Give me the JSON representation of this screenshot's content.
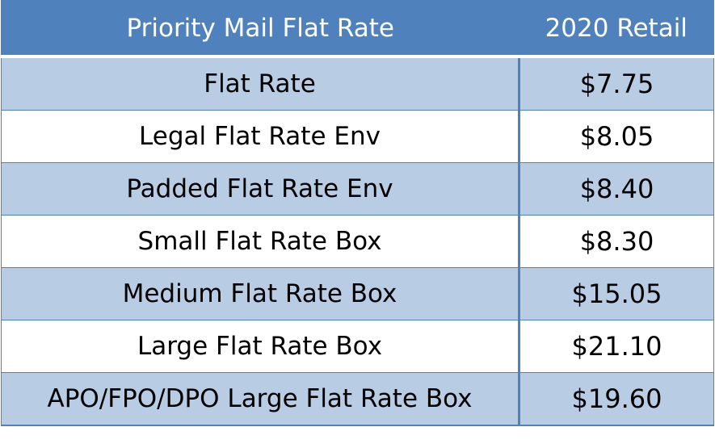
{
  "table": {
    "headers": [
      "Priority Mail Flat Rate",
      "2020 Retail"
    ],
    "rows": [
      {
        "item": "Flat Rate",
        "price": "$7.75"
      },
      {
        "item": "Legal Flat Rate Env",
        "price": "$8.05"
      },
      {
        "item": "Padded Flat Rate Env",
        "price": "$8.40"
      },
      {
        "item": "Small Flat Rate Box",
        "price": "$8.30"
      },
      {
        "item": "Medium Flat Rate Box",
        "price": "$15.05"
      },
      {
        "item": "Large Flat Rate Box",
        "price": "$21.10"
      },
      {
        "item": "APO/FPO/DPO Large Flat Rate Box",
        "price": "$19.60"
      }
    ]
  },
  "colors": {
    "header_bg": "#4f81bd",
    "band_bg": "#b8cce4",
    "row_bg": "#ffffff"
  }
}
